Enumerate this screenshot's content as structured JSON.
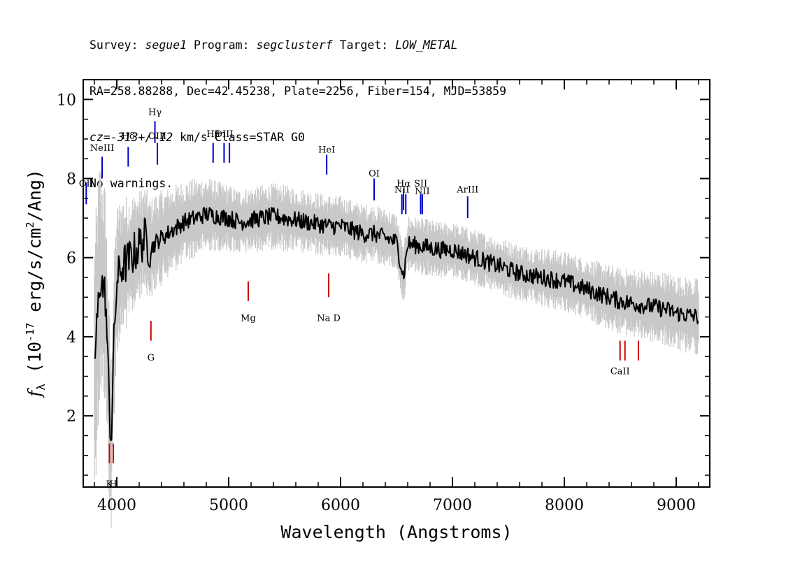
{
  "header": {
    "line1": {
      "survey_label": "Survey: ",
      "survey": "segue1",
      "program_label": " Program: ",
      "program": "segclusterf",
      "target_label": " Target: ",
      "target": "LOW_METAL"
    },
    "line2": "RA=258.88288, Dec=42.45238, Plate=2256, Fiber=154, MJD=53859",
    "line3": {
      "cz_label": "cz=",
      "cz": "-313+/-12",
      "rest": " km/s Class=STAR G0"
    },
    "line4": "No warnings."
  },
  "chart_data": {
    "type": "line",
    "xlabel": "Wavelength (Angstroms)",
    "ylabel": "f_λ (10^-17 erg/s/cm^2/Ang)",
    "xlim": [
      3700,
      9300
    ],
    "ylim": [
      0.2,
      10.5
    ],
    "xticks": [
      4000,
      5000,
      6000,
      7000,
      8000,
      9000
    ],
    "yticks": [
      2,
      4,
      6,
      8,
      10
    ],
    "series": [
      {
        "role": "flux",
        "color": "#000000",
        "x": [
          3800,
          3850,
          3900,
          3930,
          3950,
          3970,
          4000,
          4050,
          4100,
          4150,
          4200,
          4250,
          4300,
          4350,
          4400,
          4500,
          4600,
          4700,
          4800,
          4900,
          5000,
          5100,
          5200,
          5300,
          5400,
          5500,
          5600,
          5700,
          5800,
          5900,
          6000,
          6100,
          6200,
          6300,
          6400,
          6500,
          6563,
          6600,
          6700,
          6800,
          6900,
          7000,
          7100,
          7200,
          7300,
          7400,
          7500,
          7600,
          7700,
          7800,
          7900,
          8000,
          8100,
          8200,
          8300,
          8400,
          8500,
          8600,
          8700,
          8800,
          8900,
          9000,
          9100,
          9200
        ],
        "y": [
          3.2,
          5.5,
          5.0,
          2.5,
          1.3,
          3.5,
          5.4,
          5.8,
          5.9,
          6.1,
          6.3,
          6.5,
          6.2,
          6.4,
          6.5,
          6.7,
          6.9,
          7.0,
          7.1,
          7.05,
          7.0,
          6.9,
          6.95,
          7.0,
          7.05,
          7.0,
          6.95,
          6.9,
          6.85,
          6.8,
          6.8,
          6.7,
          6.6,
          6.6,
          6.5,
          6.4,
          5.5,
          6.35,
          6.3,
          6.25,
          6.2,
          6.2,
          6.1,
          6.0,
          5.9,
          5.8,
          5.7,
          5.6,
          5.55,
          5.5,
          5.45,
          5.4,
          5.3,
          5.2,
          5.1,
          5.0,
          4.9,
          4.85,
          4.8,
          4.75,
          4.7,
          4.6,
          4.55,
          4.5
        ]
      },
      {
        "role": "error",
        "color": "#c8c8c8",
        "x": [
          3800,
          3900,
          4000,
          4200,
          4500,
          5000,
          5600,
          6000,
          7000,
          8000,
          8500,
          9000,
          9200
        ],
        "half_width": [
          2.5,
          2.0,
          1.4,
          1.0,
          0.8,
          0.6,
          0.6,
          0.55,
          0.5,
          0.55,
          0.6,
          0.7,
          0.7
        ]
      }
    ],
    "emission_lines": [
      {
        "label": "OII",
        "x": 3727,
        "y_label": 7.8,
        "y1": 7.9,
        "y2": 7.35
      },
      {
        "label": "NeIII",
        "x": 3869,
        "y_label": 8.7,
        "y1": 8.55,
        "y2": 8.0
      },
      {
        "label": "Hδ",
        "x": 4102,
        "y_label": 9.0,
        "y1": 8.8,
        "y2": 8.3
      },
      {
        "label": "Hγ",
        "x": 4341,
        "y_label": 9.6,
        "y1": 9.45,
        "y2": 8.9
      },
      {
        "label": "OIII",
        "x": 4363,
        "y_label": 9.0,
        "y1": 8.9,
        "y2": 8.35
      },
      {
        "label": "Hβ",
        "x": 4861,
        "y_label": 9.05,
        "y1": 8.9,
        "y2": 8.4
      },
      {
        "label": "OIII",
        "x": 4959,
        "y_label": 9.05,
        "y1": 8.9,
        "y2": 8.4
      },
      {
        "label": "OIII",
        "x": 5007,
        "y_label": null,
        "y1": 8.9,
        "y2": 8.4
      },
      {
        "label": "HeI",
        "x": 5876,
        "y_label": 8.65,
        "y1": 8.6,
        "y2": 8.1
      },
      {
        "label": "OI",
        "x": 6300,
        "y_label": 8.05,
        "y1": 8.0,
        "y2": 7.45
      },
      {
        "label": "NII",
        "x": 6548,
        "y_label": 7.65,
        "y1": 7.6,
        "y2": 7.1
      },
      {
        "label": "Hα",
        "x": 6563,
        "y_label": 7.8,
        "y1": 7.75,
        "y2": 7.2
      },
      {
        "label": "NII",
        "x": 6583,
        "y_label": null,
        "y1": 7.6,
        "y2": 7.1
      },
      {
        "label": "SII",
        "x": 6716,
        "y_label": 7.8,
        "y1": 7.6,
        "y2": 7.1
      },
      {
        "label": "SII",
        "x": 6731,
        "y_label": null,
        "y1": 7.6,
        "y2": 7.1
      },
      {
        "label": "NII",
        "x": 6730,
        "y_label": 7.6,
        "y1": null,
        "y2": null
      },
      {
        "label": "ArIII",
        "x": 7136,
        "y_label": 7.65,
        "y1": 7.55,
        "y2": 7.0
      }
    ],
    "absorption_lines": [
      {
        "label": "K",
        "x": 3934,
        "y_label": 0.2,
        "y1": 0.8,
        "y2": 1.3
      },
      {
        "label": "H",
        "x": 3969,
        "y_label": 0.2,
        "y1": 0.8,
        "y2": 1.3
      },
      {
        "label": "G",
        "x": 4305,
        "y_label": 3.4,
        "y1": 3.9,
        "y2": 4.4
      },
      {
        "label": "Mg",
        "x": 5175,
        "y_label": 4.4,
        "y1": 4.9,
        "y2": 5.4
      },
      {
        "label": "Na D",
        "x": 5894,
        "y_label": 4.4,
        "y1": 5.0,
        "y2": 5.6
      },
      {
        "label": "CaII",
        "x": 8498,
        "y_label": 3.05,
        "y1": 3.4,
        "y2": 3.9
      },
      {
        "label": "CaII",
        "x": 8542,
        "y_label": null,
        "y1": 3.4,
        "y2": 3.9
      },
      {
        "label": "CaII",
        "x": 8662,
        "y_label": null,
        "y1": 3.4,
        "y2": 3.9
      }
    ],
    "colors": {
      "emission": "#0000cc",
      "absorption": "#cc0000",
      "flux": "#000000",
      "error": "#c8c8c8"
    }
  }
}
